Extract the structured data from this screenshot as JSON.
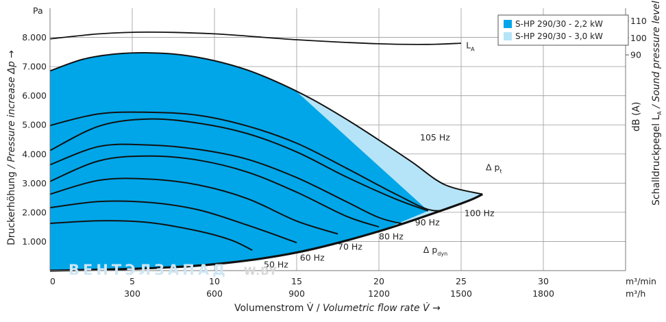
{
  "chart_data": {
    "type": "area",
    "y_unit": "Pa",
    "ylabel_prefix": "Druckerhöhung ",
    "ylabel_symbol": "Δp",
    "ylabel_en": " / Pressure increase Δp →",
    "xlabel_de": "Volumenstrom V̇ / ",
    "xlabel_en": "Volumetric flow rate V̇ →",
    "x_unit_primary": "m³/min",
    "x_unit_secondary": "m³/h",
    "y2label_de": "Schalldruckpegel L",
    "y2label_sub": "A",
    "y2label_en": " / Sound pressure level L",
    "y2label_sub2": "A",
    "y2label_arrow": " →",
    "y2_unit": "dB (A)",
    "xlim": [
      0,
      35
    ],
    "ylim": [
      0,
      9000
    ],
    "x_ticks": [
      0,
      5,
      10,
      15,
      20,
      25,
      30
    ],
    "x_tick_labels": [
      "0",
      "5",
      "10",
      "15",
      "20",
      "25",
      "30"
    ],
    "x_ticks_secondary": [
      0,
      5,
      10,
      15,
      20,
      25,
      30
    ],
    "x_tick_labels_secondary": [
      "",
      "300",
      "600",
      "900",
      "1200",
      "1500",
      "1800"
    ],
    "y_ticks": [
      1000,
      2000,
      3000,
      4000,
      5000,
      6000,
      7000,
      8000
    ],
    "y_tick_labels": [
      "1.000",
      "2.000",
      "3.000",
      "4.000",
      "5.000",
      "6.000",
      "7.000",
      "8.000"
    ],
    "y2_ticks": [
      {
        "value": 110,
        "y_equiv": 8560
      },
      {
        "value": 100,
        "y_equiv": 7980
      },
      {
        "value": 90,
        "y_equiv": 7400
      }
    ],
    "grid": true,
    "legend_position": "top-right",
    "series": [
      {
        "name": "S-HP 290/30 - 2,2 kW",
        "color": "#00a6e8"
      },
      {
        "name": "S-HP 290/30 - 3,0 kW",
        "color": "#b5e4f8"
      }
    ],
    "outer_envelope": [
      [
        0,
        6850
      ],
      [
        2,
        7250
      ],
      [
        4,
        7430
      ],
      [
        6,
        7470
      ],
      [
        8,
        7400
      ],
      [
        10,
        7200
      ],
      [
        12,
        6880
      ],
      [
        14,
        6420
      ],
      [
        16,
        5860
      ],
      [
        18,
        5200
      ],
      [
        20,
        4480
      ],
      [
        22,
        3730
      ],
      [
        24,
        2950
      ],
      [
        26.3,
        2620
      ]
    ],
    "system_curve": [
      [
        0,
        0
      ],
      [
        5,
        60
      ],
      [
        10,
        220
      ],
      [
        15,
        620
      ],
      [
        20,
        1350
      ],
      [
        25,
        2300
      ],
      [
        26.3,
        2620
      ]
    ],
    "boundary_2_2kW": [
      [
        15,
        6560
      ],
      [
        23,
        2050
      ]
    ],
    "frequency_curves": [
      {
        "label": "50 Hz",
        "label_pos": [
          13,
          200
        ],
        "points": [
          [
            0,
            1620
          ],
          [
            3,
            1710
          ],
          [
            6,
            1650
          ],
          [
            9,
            1360
          ],
          [
            11,
            1050
          ],
          [
            12.3,
            700
          ]
        ]
      },
      {
        "label": "60 Hz",
        "label_pos": [
          15.2,
          440
        ],
        "points": [
          [
            0,
            2160
          ],
          [
            3,
            2370
          ],
          [
            6,
            2340
          ],
          [
            9,
            2090
          ],
          [
            12,
            1560
          ],
          [
            15,
            960
          ]
        ]
      },
      {
        "label": "70 Hz",
        "label_pos": [
          17.5,
          810
        ],
        "points": [
          [
            0,
            2620
          ],
          [
            3,
            3100
          ],
          [
            6,
            3140
          ],
          [
            9,
            2940
          ],
          [
            12,
            2470
          ],
          [
            15,
            1700
          ],
          [
            17.5,
            1260
          ]
        ]
      },
      {
        "label": "80 Hz",
        "label_pos": [
          20,
          1160
        ],
        "points": [
          [
            0,
            3060
          ],
          [
            3,
            3770
          ],
          [
            6,
            3930
          ],
          [
            9,
            3790
          ],
          [
            12,
            3380
          ],
          [
            15,
            2690
          ],
          [
            18,
            1870
          ],
          [
            20,
            1500
          ]
        ]
      },
      {
        "label": "90 Hz",
        "label_pos": [
          22.2,
          1640
        ],
        "points": [
          [
            0,
            3630
          ],
          [
            3,
            4260
          ],
          [
            6,
            4310
          ],
          [
            9,
            4160
          ],
          [
            12,
            3820
          ],
          [
            15,
            3190
          ],
          [
            18,
            2370
          ],
          [
            20,
            1820
          ],
          [
            21.5,
            1600
          ]
        ]
      },
      {
        "label": "100 Hz",
        "label_pos": [
          25.2,
          1960
        ],
        "points": [
          [
            0,
            4120
          ],
          [
            3,
            4960
          ],
          [
            6,
            5200
          ],
          [
            9,
            5060
          ],
          [
            12,
            4700
          ],
          [
            15,
            4070
          ],
          [
            18,
            3220
          ],
          [
            21,
            2460
          ],
          [
            23,
            2050
          ]
        ]
      },
      {
        "label": "105 Hz",
        "label_pos": [
          22.5,
          4560
        ],
        "points": [
          [
            0,
            4980
          ],
          [
            3,
            5380
          ],
          [
            6,
            5430
          ],
          [
            9,
            5330
          ],
          [
            12,
            4960
          ],
          [
            15,
            4370
          ],
          [
            18,
            3520
          ],
          [
            21,
            2630
          ],
          [
            23.3,
            2060
          ],
          [
            25,
            2300
          ]
        ]
      }
    ],
    "sound_level_curve": [
      [
        0,
        7950
      ],
      [
        3,
        8120
      ],
      [
        6,
        8180
      ],
      [
        10,
        8120
      ],
      [
        15,
        7920
      ],
      [
        20,
        7780
      ],
      [
        23,
        7760
      ],
      [
        25,
        7800
      ]
    ],
    "annotations": [
      {
        "text": "L",
        "sub": "A",
        "pos": [
          25.3,
          7620
        ]
      },
      {
        "text": "Δ p",
        "sub": "t",
        "pos": [
          26.5,
          3440
        ]
      },
      {
        "text": "Δ p",
        "sub": "dyn",
        "pos": [
          22.7,
          610
        ]
      }
    ],
    "watermark": "ВЕНТЭЛЗАПАД",
    "watermark_suffix": "W.BY"
  }
}
